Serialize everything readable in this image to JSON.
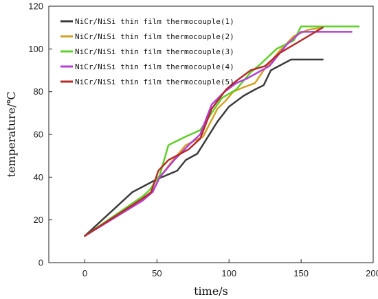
{
  "chart_data": {
    "type": "line",
    "xlabel": "time/s",
    "ylabel": "temperature/℃",
    "xlim": [
      -25,
      200
    ],
    "ylim": [
      0,
      120
    ],
    "xticks": [
      0,
      50,
      100,
      150,
      200
    ],
    "yticks": [
      0,
      20,
      40,
      60,
      80,
      100,
      120
    ],
    "grid": false,
    "legend_position": "top-left",
    "series": [
      {
        "name": "NiCr/NiSi thin film thermocouple(1)",
        "color": "#3b3b3b",
        "x": [
          0,
          33,
          50,
          64,
          70,
          78,
          92,
          100,
          110,
          118,
          124,
          129,
          143,
          152,
          165
        ],
        "y": [
          12.5,
          33,
          39,
          43,
          48,
          51,
          66,
          73,
          78,
          81,
          83,
          90,
          95,
          95,
          95
        ]
      },
      {
        "name": "NiCr/NiSi thin film thermocouple(2)",
        "color": "#d4a020",
        "x": [
          0,
          40,
          47,
          52,
          60,
          70,
          82,
          92,
          98,
          103,
          110,
          118,
          124,
          135,
          145,
          155,
          165
        ],
        "y": [
          12.5,
          29,
          33,
          40,
          47,
          55,
          59,
          72,
          76,
          80,
          82,
          84,
          90,
          99,
          106,
          109,
          110
        ]
      },
      {
        "name": "NiCr/NiSi thin film thermocouple(3)",
        "color": "#5fd028",
        "x": [
          0,
          40,
          45,
          52,
          58,
          70,
          80,
          88,
          95,
          100,
          105,
          115,
          122,
          133,
          145,
          150,
          190
        ],
        "y": [
          12.5,
          31,
          34,
          41,
          55,
          59,
          62,
          70,
          77,
          79,
          81,
          89,
          93,
          100,
          104,
          110.5,
          110.5
        ]
      },
      {
        "name": "NiCr/NiSi thin film thermocouple(4)",
        "color": "#b63ed8",
        "x": [
          0,
          40,
          47,
          52,
          62,
          72,
          80,
          88,
          97,
          105,
          112,
          120,
          128,
          140,
          150,
          185
        ],
        "y": [
          12.5,
          29,
          33,
          40,
          48,
          55,
          60,
          74,
          80,
          84,
          86,
          89,
          92,
          102,
          108,
          108
        ]
      },
      {
        "name": "NiCr/NiSi thin film thermocouple(5)",
        "color": "#b52a2a",
        "x": [
          0,
          40,
          46,
          51,
          58,
          72,
          80,
          88,
          98,
          105,
          115,
          125,
          135,
          150,
          165
        ],
        "y": [
          12.5,
          30,
          33,
          43,
          48,
          53,
          58,
          72,
          81,
          85,
          90,
          92,
          98,
          104,
          110
        ]
      }
    ]
  }
}
